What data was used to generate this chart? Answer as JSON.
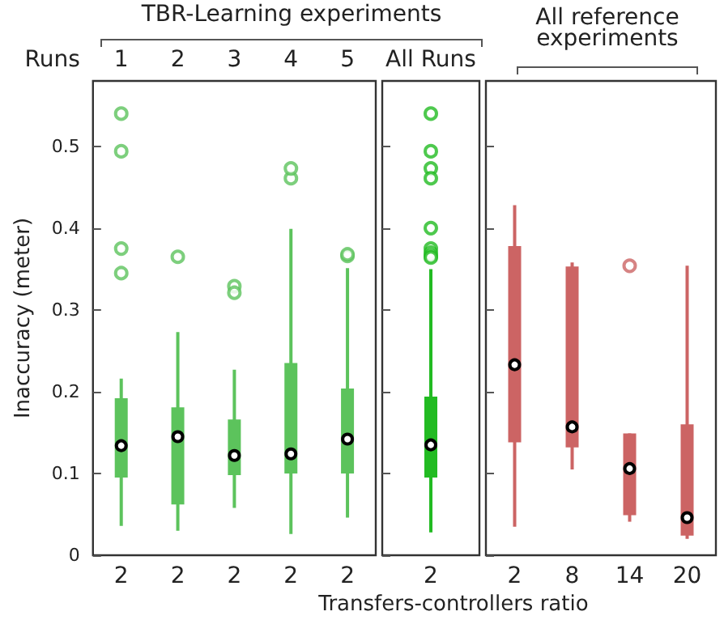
{
  "chart_data": [
    {
      "type": "box",
      "title": "TBR-Learning experiments",
      "ylabel": "Inaccuracy (meter)",
      "categories": [
        "2",
        "2",
        "2",
        "2",
        "2"
      ],
      "annotations": [
        "Runs",
        "1",
        "2",
        "3",
        "4",
        "5"
      ],
      "ylim": [
        0,
        0.58
      ],
      "yticks": [
        0,
        0.1,
        0.2,
        0.3,
        0.4,
        0.5
      ],
      "grid": false,
      "series": [
        {
          "color": "#5cc35c",
          "boxes": [
            {
              "low": 0.036,
              "q1": 0.095,
              "median": 0.134,
              "q3": 0.192,
              "high": 0.216,
              "outliers": [
                0.54,
                0.494,
                0.375,
                0.345
              ]
            },
            {
              "low": 0.03,
              "q1": 0.062,
              "median": 0.145,
              "q3": 0.181,
              "high": 0.273,
              "outliers": [
                0.365
              ]
            },
            {
              "low": 0.058,
              "q1": 0.098,
              "median": 0.122,
              "q3": 0.166,
              "high": 0.227,
              "outliers": [
                0.329,
                0.321
              ]
            },
            {
              "low": 0.026,
              "q1": 0.1,
              "median": 0.124,
              "q3": 0.235,
              "high": 0.399,
              "outliers": [
                0.461,
                0.473
              ]
            },
            {
              "low": 0.046,
              "q1": 0.1,
              "median": 0.142,
              "q3": 0.204,
              "high": 0.351,
              "outliers": [
                0.366,
                0.368
              ]
            }
          ]
        }
      ]
    },
    {
      "type": "box",
      "xlabel": "Transfers-controllers ratio",
      "categories": [
        "2"
      ],
      "annotations": [
        "All Runs"
      ],
      "ylim": [
        0,
        0.58
      ],
      "yticks": [
        0,
        0.1,
        0.2,
        0.3,
        0.4,
        0.5
      ],
      "grid": false,
      "tick_labels": "x",
      "series": [
        {
          "color": "#22bb22",
          "boxes": [
            {
              "low": 0.028,
              "q1": 0.095,
              "median": 0.135,
              "q3": 0.194,
              "high": 0.35,
              "outliers": [
                0.54,
                0.494,
                0.473,
                0.461,
                0.4,
                0.375,
                0.37,
                0.366,
                0.364
              ]
            }
          ]
        }
      ]
    },
    {
      "type": "box",
      "title": "All reference experiments",
      "categories": [
        "2",
        "8",
        "14",
        "20"
      ],
      "ylim": [
        0,
        0.58
      ],
      "yticks": [
        0,
        0.1,
        0.2,
        0.3,
        0.4,
        0.5
      ],
      "grid": false,
      "tick_labels": "x",
      "series": [
        {
          "color": "#cc6464",
          "boxes": [
            {
              "low": 0.035,
              "q1": 0.138,
              "median": 0.233,
              "q3": 0.378,
              "high": 0.428
            },
            {
              "low": 0.105,
              "q1": 0.132,
              "median": 0.157,
              "q3": 0.353,
              "high": 0.358
            },
            {
              "low": 0.041,
              "q1": 0.049,
              "median": 0.106,
              "q3": 0.149,
              "high": 0.149,
              "outliers": [
                0.354
              ]
            },
            {
              "low": 0.02,
              "q1": 0.024,
              "median": 0.046,
              "q3": 0.16,
              "high": 0.354
            }
          ]
        }
      ]
    }
  ]
}
